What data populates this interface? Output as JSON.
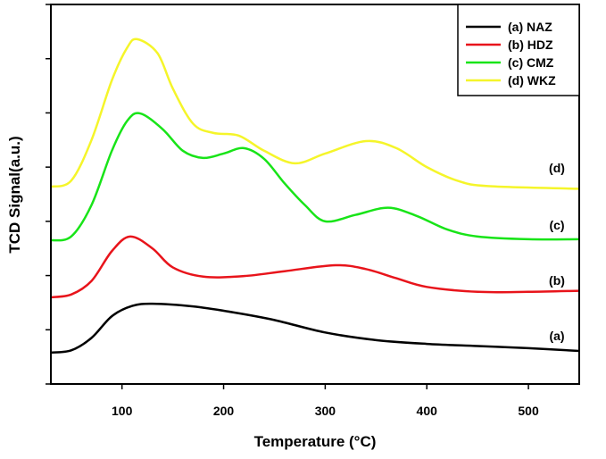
{
  "chart_data": {
    "type": "line",
    "title": "",
    "xlabel": "Temperature (°C)",
    "xlabel_parts": {
      "main": "Temperature (",
      "sup": "o",
      "end": "C)"
    },
    "ylabel": "TCD Signal(a.u.)",
    "xlim": [
      30,
      550
    ],
    "ylim": [
      0,
      7
    ],
    "xticks": [
      100,
      200,
      300,
      400,
      500
    ],
    "yticks": [
      0,
      1,
      2,
      3,
      4,
      5,
      6,
      7
    ],
    "ytick_labels_shown": false,
    "grid": false,
    "legend_position": "top-right",
    "series": [
      {
        "name": "(a) NAZ",
        "tag": "(a)",
        "color": "#000000",
        "x": [
          30,
          50,
          70,
          90,
          110,
          130,
          170,
          210,
          250,
          300,
          350,
          400,
          450,
          500,
          550
        ],
        "y": [
          0.58,
          0.62,
          0.85,
          1.25,
          1.44,
          1.48,
          1.43,
          1.32,
          1.18,
          0.95,
          0.81,
          0.74,
          0.7,
          0.66,
          0.61
        ]
      },
      {
        "name": "(b) HDZ",
        "tag": "(b)",
        "color": "#e8141b",
        "x": [
          30,
          50,
          70,
          90,
          108,
          130,
          150,
          180,
          220,
          260,
          310,
          340,
          370,
          400,
          450,
          500,
          550
        ],
        "y": [
          1.6,
          1.65,
          1.9,
          2.45,
          2.72,
          2.5,
          2.15,
          1.98,
          1.99,
          2.08,
          2.19,
          2.12,
          1.95,
          1.79,
          1.7,
          1.7,
          1.72
        ]
      },
      {
        "name": "(c) CMZ",
        "tag": "(c)",
        "color": "#18e418",
        "x": [
          30,
          50,
          70,
          90,
          105,
          118,
          140,
          160,
          180,
          200,
          220,
          240,
          260,
          280,
          300,
          330,
          362,
          390,
          420,
          450,
          500,
          550
        ],
        "y": [
          2.65,
          2.72,
          3.3,
          4.3,
          4.85,
          4.99,
          4.7,
          4.3,
          4.17,
          4.25,
          4.35,
          4.15,
          3.7,
          3.3,
          3.0,
          3.12,
          3.25,
          3.1,
          2.85,
          2.72,
          2.67,
          2.67
        ]
      },
      {
        "name": "(d) WKZ",
        "tag": "(d)",
        "color": "#f5f52a",
        "x": [
          30,
          50,
          70,
          90,
          105,
          115,
          135,
          150,
          170,
          190,
          215,
          240,
          270,
          300,
          340,
          370,
          400,
          430,
          460,
          550
        ],
        "y": [
          3.64,
          3.75,
          4.5,
          5.6,
          6.2,
          6.36,
          6.1,
          5.45,
          4.8,
          4.63,
          4.58,
          4.3,
          4.07,
          4.25,
          4.48,
          4.35,
          4.0,
          3.75,
          3.65,
          3.6
        ]
      }
    ]
  }
}
